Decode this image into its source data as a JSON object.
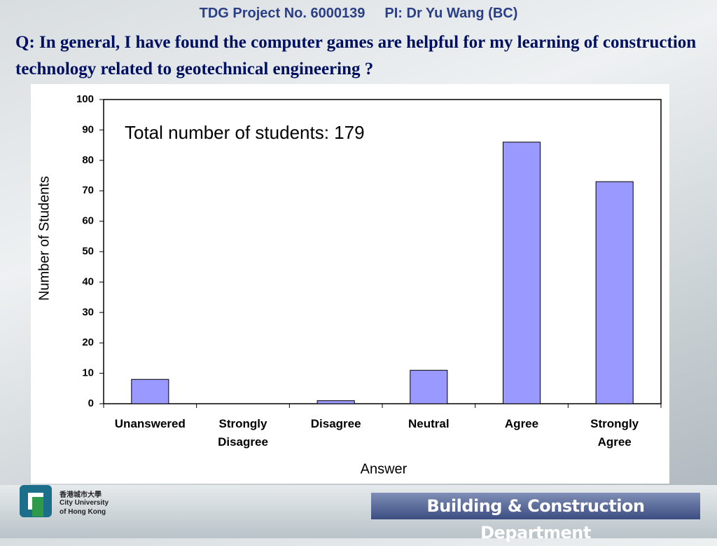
{
  "header": {
    "project": "TDG Project No. 6000139",
    "pi": "PI: Dr Yu Wang (BC)"
  },
  "question": "Q: In general, I have found the computer games are helpful for my learning of construction technology related to geotechnical engineering ?",
  "chart_data": {
    "type": "bar",
    "annotation": "Total number of students: 179",
    "xlabel": "Answer",
    "ylabel": "Number of Students",
    "categories": [
      "Unanswered",
      "Strongly Disagree",
      "Disagree",
      "Neutral",
      "Agree",
      "Strongly Agree"
    ],
    "values": [
      8,
      0,
      1,
      11,
      86,
      73
    ],
    "color": "#9999ff",
    "ylim": [
      0,
      100
    ],
    "yticks": [
      0,
      10,
      20,
      30,
      40,
      50,
      60,
      70,
      80,
      90,
      100
    ],
    "grid": false
  },
  "footer": {
    "logo_chinese": "香港城市大學",
    "logo_line1": "City University",
    "logo_line2": "of Hong Kong",
    "department": "Building & Construction Department"
  }
}
